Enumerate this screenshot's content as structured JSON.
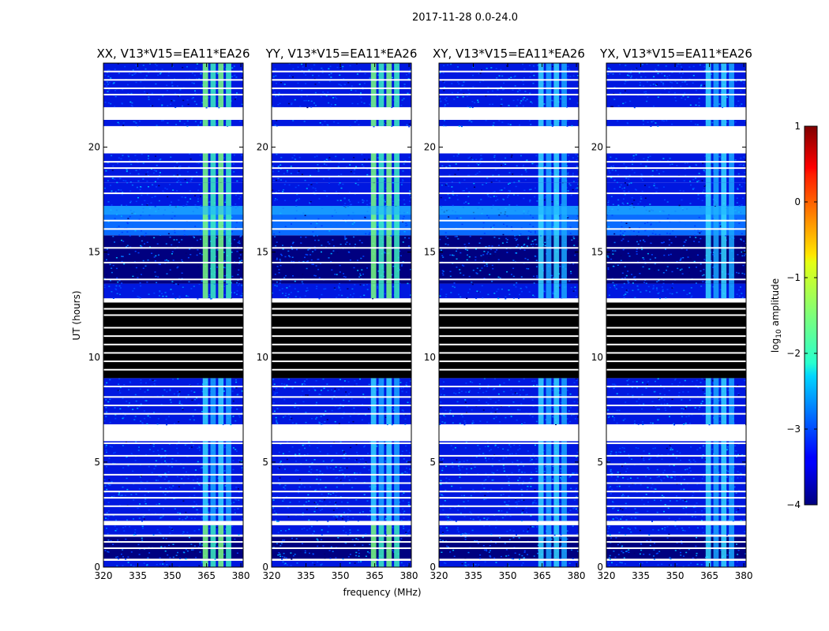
{
  "figure": {
    "suptitle": "2017-11-28 0.0-24.0"
  },
  "chart_data": [
    {
      "type": "heatmap",
      "title": "XX, V13*V15=EA11*EA26",
      "xlabel": "",
      "ylabel": "UT (hours)",
      "xlim": [
        320,
        381
      ],
      "ylim": [
        0,
        24
      ],
      "x_ticks": [
        "320",
        "335",
        "350",
        "365",
        "380"
      ],
      "y_ticks": [
        "0",
        "5",
        "10",
        "15",
        "20"
      ]
    },
    {
      "type": "heatmap",
      "title": "YY, V13*V15=EA11*EA26",
      "xlabel": "frequency (MHz)",
      "ylabel": "",
      "xlim": [
        320,
        381
      ],
      "ylim": [
        0,
        24
      ],
      "x_ticks": [
        "320",
        "335",
        "350",
        "365",
        "380"
      ],
      "y_ticks": [
        "0",
        "5",
        "10",
        "15",
        "20"
      ]
    },
    {
      "type": "heatmap",
      "title": "XY, V13*V15=EA11*EA26",
      "xlabel": "",
      "ylabel": "",
      "xlim": [
        320,
        381
      ],
      "ylim": [
        0,
        24
      ],
      "x_ticks": [
        "320",
        "335",
        "350",
        "365",
        "380"
      ],
      "y_ticks": [
        "0",
        "5",
        "10",
        "15",
        "20"
      ]
    },
    {
      "type": "heatmap",
      "title": "YX, V13*V15=EA11*EA26",
      "xlabel": "",
      "ylabel": "",
      "xlim": [
        320,
        381
      ],
      "ylim": [
        0,
        24
      ],
      "x_ticks": [
        "320",
        "335",
        "350",
        "365",
        "380"
      ],
      "y_ticks": [
        "0",
        "5",
        "10",
        "15",
        "20"
      ]
    }
  ],
  "colorbar": {
    "label": "log10 amplitude",
    "label_base": "log",
    "label_sub": "10",
    "label_rest": " amplitude",
    "range": [
      -4,
      1
    ],
    "ticks": [
      "1",
      "0",
      "−1",
      "−2",
      "−3",
      "−4"
    ],
    "tick_values": [
      1,
      0,
      -1,
      -2,
      -3,
      -4
    ]
  }
}
